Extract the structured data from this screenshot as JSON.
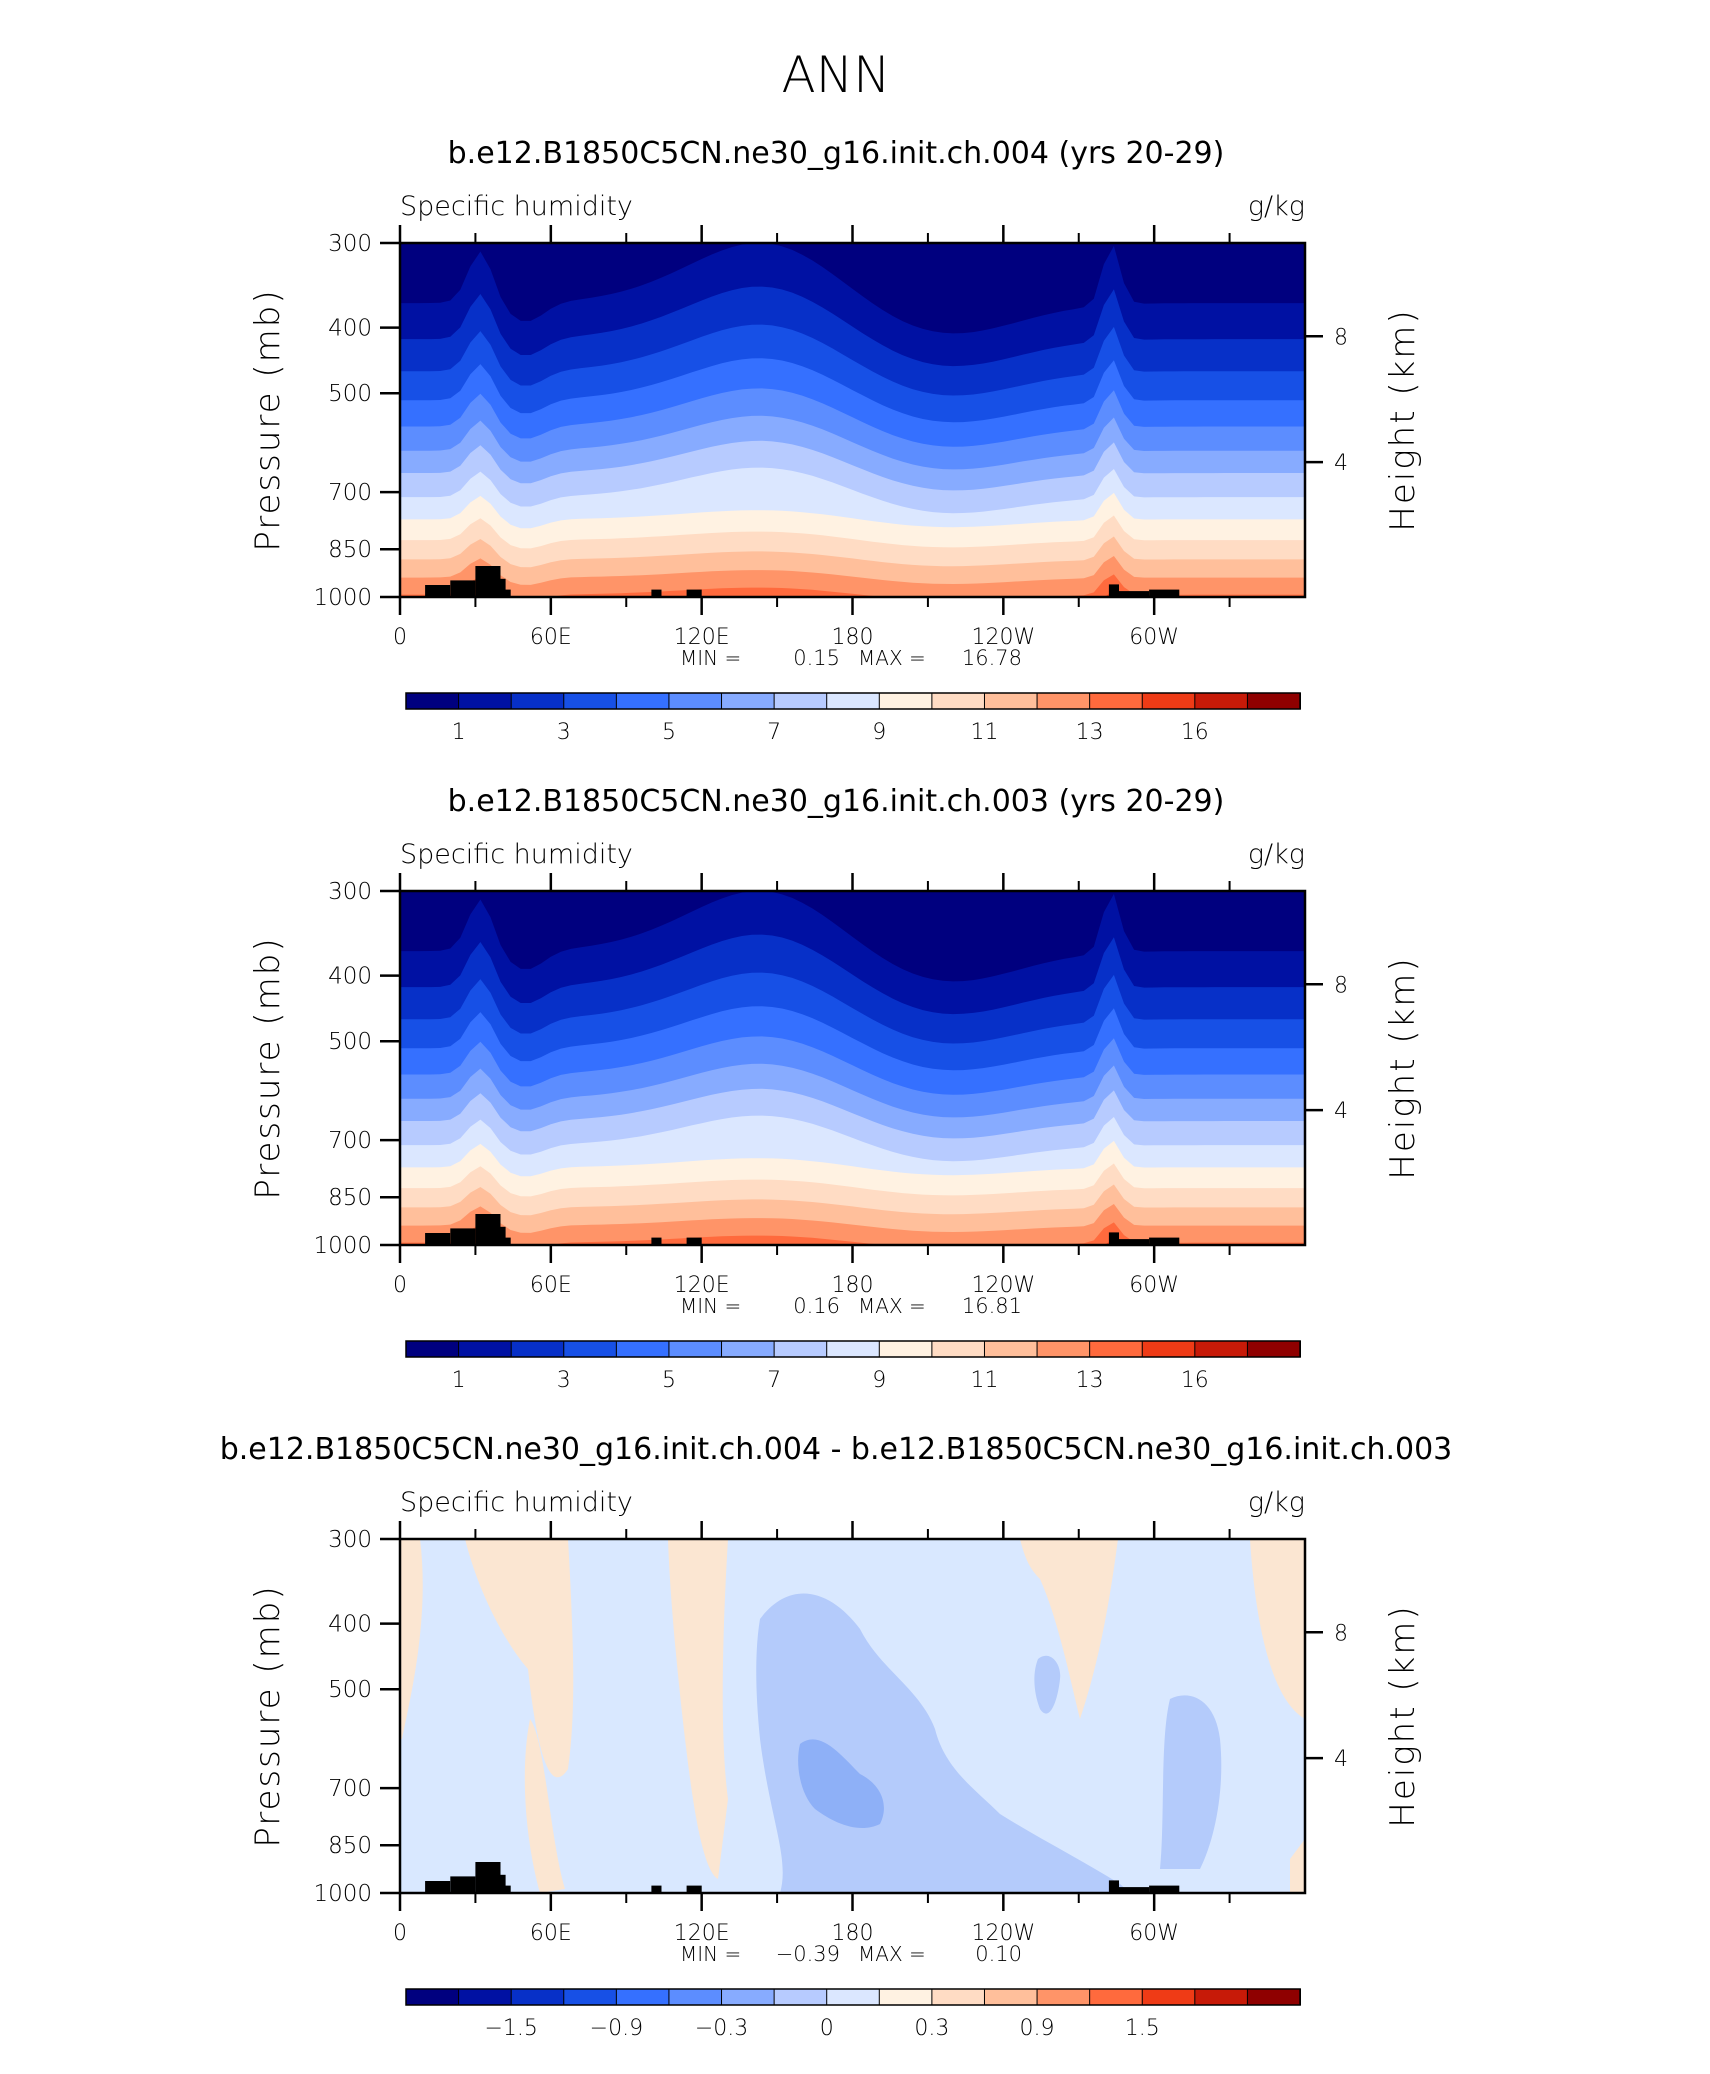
{
  "figure_title": "ANN",
  "panels": [
    {
      "title": "b.e12.B1850C5CN.ne30_g16.init.ch.004 (yrs 20-29)",
      "variable": "Specific humidity",
      "units": "g/kg",
      "left_axis_label": "Pressure (mb)",
      "right_axis_label": "Height (km)",
      "stats": {
        "min_label": "MIN =",
        "min": "0.15",
        "max_label": "MAX =",
        "max": "16.78"
      },
      "colorbar_labels": [
        "1",
        "3",
        "5",
        "7",
        "9",
        "11",
        "13",
        "16"
      ],
      "colorbar_colors": [
        "#00007f",
        "#0011a3",
        "#0730c8",
        "#1750e6",
        "#3570ff",
        "#5c8dff",
        "#87abff",
        "#b7cbff",
        "#dbe7ff",
        "#fff2e2",
        "#ffdcc4",
        "#ffbf9b",
        "#ff9468",
        "#ff6a3d",
        "#ef3b16",
        "#c71a08",
        "#8f0000"
      ]
    },
    {
      "title": "b.e12.B1850C5CN.ne30_g16.init.ch.003 (yrs 20-29)",
      "variable": "Specific humidity",
      "units": "g/kg",
      "left_axis_label": "Pressure (mb)",
      "right_axis_label": "Height (km)",
      "stats": {
        "min_label": "MIN =",
        "min": "0.16",
        "max_label": "MAX =",
        "max": "16.81"
      },
      "colorbar_labels": [
        "1",
        "3",
        "5",
        "7",
        "9",
        "11",
        "13",
        "16"
      ],
      "colorbar_colors": [
        "#00007f",
        "#0011a3",
        "#0730c8",
        "#1750e6",
        "#3570ff",
        "#5c8dff",
        "#87abff",
        "#b7cbff",
        "#dbe7ff",
        "#fff2e2",
        "#ffdcc4",
        "#ffbf9b",
        "#ff9468",
        "#ff6a3d",
        "#ef3b16",
        "#c71a08",
        "#8f0000"
      ]
    },
    {
      "title": "b.e12.B1850C5CN.ne30_g16.init.ch.004 - b.e12.B1850C5CN.ne30_g16.init.ch.003",
      "variable": "Specific humidity",
      "units": "g/kg",
      "left_axis_label": "Pressure (mb)",
      "right_axis_label": "Height (km)",
      "stats": {
        "min_label": "MIN =",
        "min": "−0.39",
        "max_label": "MAX =",
        "max": "0.10"
      },
      "colorbar_labels": [
        "−1.5",
        "−0.9",
        "−0.3",
        "0",
        "0.3",
        "0.9",
        "1.5"
      ],
      "colorbar_colors": [
        "#00007f",
        "#0011a3",
        "#0730c8",
        "#1750e6",
        "#3570ff",
        "#5c8dff",
        "#87abff",
        "#b7cbff",
        "#dbe7ff",
        "#fff2e2",
        "#ffdcc4",
        "#ffbf9b",
        "#ff9468",
        "#ff6a3d",
        "#ef3b16",
        "#c71a08",
        "#8f0000"
      ]
    }
  ],
  "chart_data": [
    {
      "type": "heatmap",
      "title": "b.e12.B1850C5CN.ne30_g16.init.ch.004 (yrs 20-29)",
      "xlabel": "",
      "ylabel": "Pressure (mb)",
      "y2label": "Height (km)",
      "x_ticks": [
        "0",
        "60E",
        "120E",
        "180",
        "120W",
        "60W"
      ],
      "y_ticks": [
        300,
        400,
        500,
        700,
        850,
        1000
      ],
      "y2_ticks": [
        4,
        8
      ],
      "ylim": [
        1000,
        300
      ],
      "xlim": [
        0,
        360
      ],
      "levels": [
        1,
        3,
        5,
        7,
        9,
        11,
        13,
        16
      ],
      "min": 0.15,
      "max": 16.78,
      "orography": [
        [
          10,
          1000
        ],
        [
          20,
          950
        ],
        [
          30,
          900
        ],
        [
          40,
          1000
        ],
        [
          100,
          1000
        ],
        [
          115,
          1000
        ],
        [
          280,
          1000
        ],
        [
          290,
          1000
        ]
      ]
    },
    {
      "type": "heatmap",
      "title": "b.e12.B1850C5CN.ne30_g16.init.ch.003 (yrs 20-29)",
      "xlabel": "",
      "ylabel": "Pressure (mb)",
      "y2label": "Height (km)",
      "x_ticks": [
        "0",
        "60E",
        "120E",
        "180",
        "120W",
        "60W"
      ],
      "y_ticks": [
        300,
        400,
        500,
        700,
        850,
        1000
      ],
      "y2_ticks": [
        4,
        8
      ],
      "ylim": [
        1000,
        300
      ],
      "xlim": [
        0,
        360
      ],
      "levels": [
        1,
        3,
        5,
        7,
        9,
        11,
        13,
        16
      ],
      "min": 0.16,
      "max": 16.81
    },
    {
      "type": "heatmap",
      "title": "b.e12.B1850C5CN.ne30_g16.init.ch.004 - b.e12.B1850C5CN.ne30_g16.init.ch.003",
      "xlabel": "",
      "ylabel": "Pressure (mb)",
      "y2label": "Height (km)",
      "x_ticks": [
        "0",
        "60E",
        "120E",
        "180",
        "120W",
        "60W"
      ],
      "y_ticks": [
        300,
        400,
        500,
        700,
        850,
        1000
      ],
      "y2_ticks": [
        4,
        8
      ],
      "ylim": [
        1000,
        300
      ],
      "xlim": [
        0,
        360
      ],
      "levels": [
        -1.5,
        -0.9,
        -0.3,
        0,
        0.3,
        0.9,
        1.5
      ],
      "min": -0.39,
      "max": 0.1
    }
  ],
  "x_tick_labels": [
    "0",
    "60E",
    "120E",
    "180",
    "120W",
    "60W"
  ],
  "y_tick_labels": [
    "300",
    "400",
    "500",
    "700",
    "850",
    "1000"
  ],
  "y2_tick_labels": [
    "8",
    "4"
  ]
}
